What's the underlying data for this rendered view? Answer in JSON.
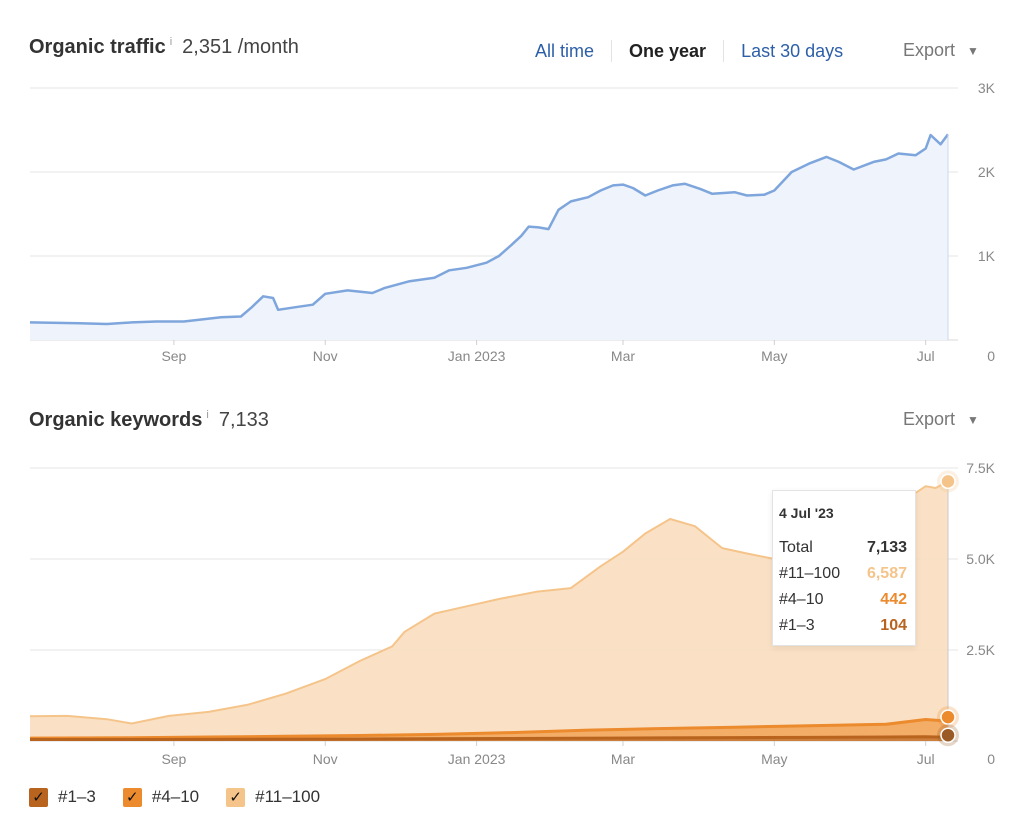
{
  "traffic": {
    "title": "Organic traffic",
    "info_icon": "i",
    "metric": "2,351 /month",
    "tabs": [
      "All time",
      "One year",
      "Last 30 days"
    ],
    "active_tab": "One year",
    "export_label": "Export",
    "color": "#7ea6dc",
    "fill": "#eef3fc"
  },
  "keywords": {
    "title": "Organic keywords",
    "info_icon": "i",
    "metric": "7,133",
    "export_label": "Export",
    "tooltip": {
      "date": "4 Jul '23",
      "rows": [
        {
          "label": "Total",
          "value": "7,133",
          "color": "#333333"
        },
        {
          "label": "#11–100",
          "value": "6,587",
          "color": "#f5c48a"
        },
        {
          "label": "#4–10",
          "value": "442",
          "color": "#ec8a2e"
        },
        {
          "label": "#1–3",
          "value": "104",
          "color": "#b8641e"
        }
      ]
    },
    "legend": [
      {
        "label": "#1–3",
        "color": "#b8641e"
      },
      {
        "label": "#4–10",
        "color": "#ec8a2e"
      },
      {
        "label": "#11–100",
        "color": "#f5c48a"
      }
    ]
  },
  "chart_data": [
    {
      "type": "area",
      "title": "Organic traffic",
      "x_ticks": [
        "Sep",
        "Nov",
        "Jan 2023",
        "Mar",
        "May",
        "Jul"
      ],
      "y_ticks": [
        "0",
        "1K",
        "2K",
        "3K"
      ],
      "ylim": [
        0,
        3000
      ],
      "xlim": [
        "2022-07-05",
        "2023-07-10"
      ],
      "grid": true,
      "series": [
        {
          "color": "#7ea6dc",
          "points": [
            [
              "2022-07-05",
              210
            ],
            [
              "2022-07-25",
              200
            ],
            [
              "2022-08-05",
              190
            ],
            [
              "2022-08-15",
              210
            ],
            [
              "2022-08-25",
              220
            ],
            [
              "2022-09-05",
              220
            ],
            [
              "2022-09-20",
              270
            ],
            [
              "2022-09-28",
              280
            ],
            [
              "2022-10-02",
              380
            ],
            [
              "2022-10-07",
              520
            ],
            [
              "2022-10-11",
              500
            ],
            [
              "2022-10-13",
              360
            ],
            [
              "2022-10-20",
              390
            ],
            [
              "2022-10-27",
              420
            ],
            [
              "2022-11-01",
              550
            ],
            [
              "2022-11-10",
              590
            ],
            [
              "2022-11-20",
              560
            ],
            [
              "2022-11-25",
              620
            ],
            [
              "2022-12-05",
              700
            ],
            [
              "2022-12-15",
              740
            ],
            [
              "2022-12-21",
              830
            ],
            [
              "2022-12-28",
              860
            ],
            [
              "2023-01-05",
              920
            ],
            [
              "2023-01-10",
              1000
            ],
            [
              "2023-01-15",
              1130
            ],
            [
              "2023-01-19",
              1240
            ],
            [
              "2023-01-22",
              1350
            ],
            [
              "2023-01-26",
              1340
            ],
            [
              "2023-01-30",
              1320
            ],
            [
              "2023-02-03",
              1550
            ],
            [
              "2023-02-08",
              1650
            ],
            [
              "2023-02-15",
              1700
            ],
            [
              "2023-02-20",
              1780
            ],
            [
              "2023-02-25",
              1840
            ],
            [
              "2023-03-01",
              1850
            ],
            [
              "2023-03-05",
              1810
            ],
            [
              "2023-03-10",
              1720
            ],
            [
              "2023-03-15",
              1780
            ],
            [
              "2023-03-21",
              1840
            ],
            [
              "2023-03-26",
              1860
            ],
            [
              "2023-04-01",
              1800
            ],
            [
              "2023-04-06",
              1740
            ],
            [
              "2023-04-15",
              1760
            ],
            [
              "2023-04-20",
              1720
            ],
            [
              "2023-04-27",
              1730
            ],
            [
              "2023-05-01",
              1780
            ],
            [
              "2023-05-08",
              2000
            ],
            [
              "2023-05-15",
              2100
            ],
            [
              "2023-05-22",
              2180
            ],
            [
              "2023-05-27",
              2120
            ],
            [
              "2023-06-02",
              2030
            ],
            [
              "2023-06-10",
              2120
            ],
            [
              "2023-06-15",
              2150
            ],
            [
              "2023-06-20",
              2220
            ],
            [
              "2023-06-27",
              2200
            ],
            [
              "2023-07-01",
              2280
            ],
            [
              "2023-07-03",
              2440
            ],
            [
              "2023-07-07",
              2330
            ],
            [
              "2023-07-10",
              2450
            ]
          ]
        }
      ]
    },
    {
      "type": "area",
      "title": "Organic keywords",
      "x_ticks": [
        "Sep",
        "Nov",
        "Jan 2023",
        "Mar",
        "May",
        "Jul"
      ],
      "y_ticks": [
        "0",
        "2.5K",
        "5.0K",
        "7.5K"
      ],
      "ylim": [
        0,
        7500
      ],
      "xlim": [
        "2022-07-05",
        "2023-07-10"
      ],
      "grid": true,
      "stacked": true,
      "series": [
        {
          "name": "#11–100",
          "color": "#f5c48a",
          "cumulative_top": [
            [
              "2022-07-05",
              680
            ],
            [
              "2022-07-20",
              690
            ],
            [
              "2022-08-05",
              600
            ],
            [
              "2022-08-15",
              480
            ],
            [
              "2022-08-30",
              690
            ],
            [
              "2022-09-15",
              800
            ],
            [
              "2022-10-01",
              1000
            ],
            [
              "2022-10-16",
              1300
            ],
            [
              "2022-11-01",
              1700
            ],
            [
              "2022-11-15",
              2200
            ],
            [
              "2022-11-28",
              2600
            ],
            [
              "2022-12-03",
              3000
            ],
            [
              "2022-12-15",
              3500
            ],
            [
              "2022-12-28",
              3700
            ],
            [
              "2023-01-10",
              3900
            ],
            [
              "2023-01-25",
              4100
            ],
            [
              "2023-02-08",
              4200
            ],
            [
              "2023-02-20",
              4800
            ],
            [
              "2023-03-01",
              5200
            ],
            [
              "2023-03-10",
              5700
            ],
            [
              "2023-03-20",
              6100
            ],
            [
              "2023-03-30",
              5900
            ],
            [
              "2023-04-10",
              5300
            ],
            [
              "2023-04-20",
              5150
            ],
            [
              "2023-05-01",
              5000
            ],
            [
              "2023-05-10",
              4950
            ],
            [
              "2023-05-20",
              4900
            ],
            [
              "2023-06-01",
              5000
            ],
            [
              "2023-06-10",
              5200
            ],
            [
              "2023-06-20",
              6500
            ],
            [
              "2023-07-01",
              7000
            ],
            [
              "2023-07-05",
              6950
            ],
            [
              "2023-07-10",
              7133
            ]
          ]
        },
        {
          "name": "#4–10",
          "color": "#ec8a2e",
          "cumulative_top": [
            [
              "2022-07-05",
              80
            ],
            [
              "2022-08-15",
              90
            ],
            [
              "2022-09-15",
              110
            ],
            [
              "2022-10-16",
              130
            ],
            [
              "2022-11-15",
              150
            ],
            [
              "2022-12-15",
              180
            ],
            [
              "2023-01-15",
              230
            ],
            [
              "2023-02-15",
              300
            ],
            [
              "2023-03-15",
              340
            ],
            [
              "2023-04-15",
              380
            ],
            [
              "2023-05-15",
              420
            ],
            [
              "2023-06-15",
              460
            ],
            [
              "2023-07-01",
              590
            ],
            [
              "2023-07-10",
              546
            ]
          ]
        },
        {
          "name": "#1–3",
          "color": "#b8641e",
          "cumulative_top": [
            [
              "2022-07-05",
              40
            ],
            [
              "2022-09-15",
              45
            ],
            [
              "2022-11-15",
              55
            ],
            [
              "2023-01-15",
              70
            ],
            [
              "2023-03-15",
              85
            ],
            [
              "2023-05-15",
              100
            ],
            [
              "2023-07-01",
              115
            ],
            [
              "2023-07-10",
              104
            ]
          ]
        }
      ]
    }
  ]
}
